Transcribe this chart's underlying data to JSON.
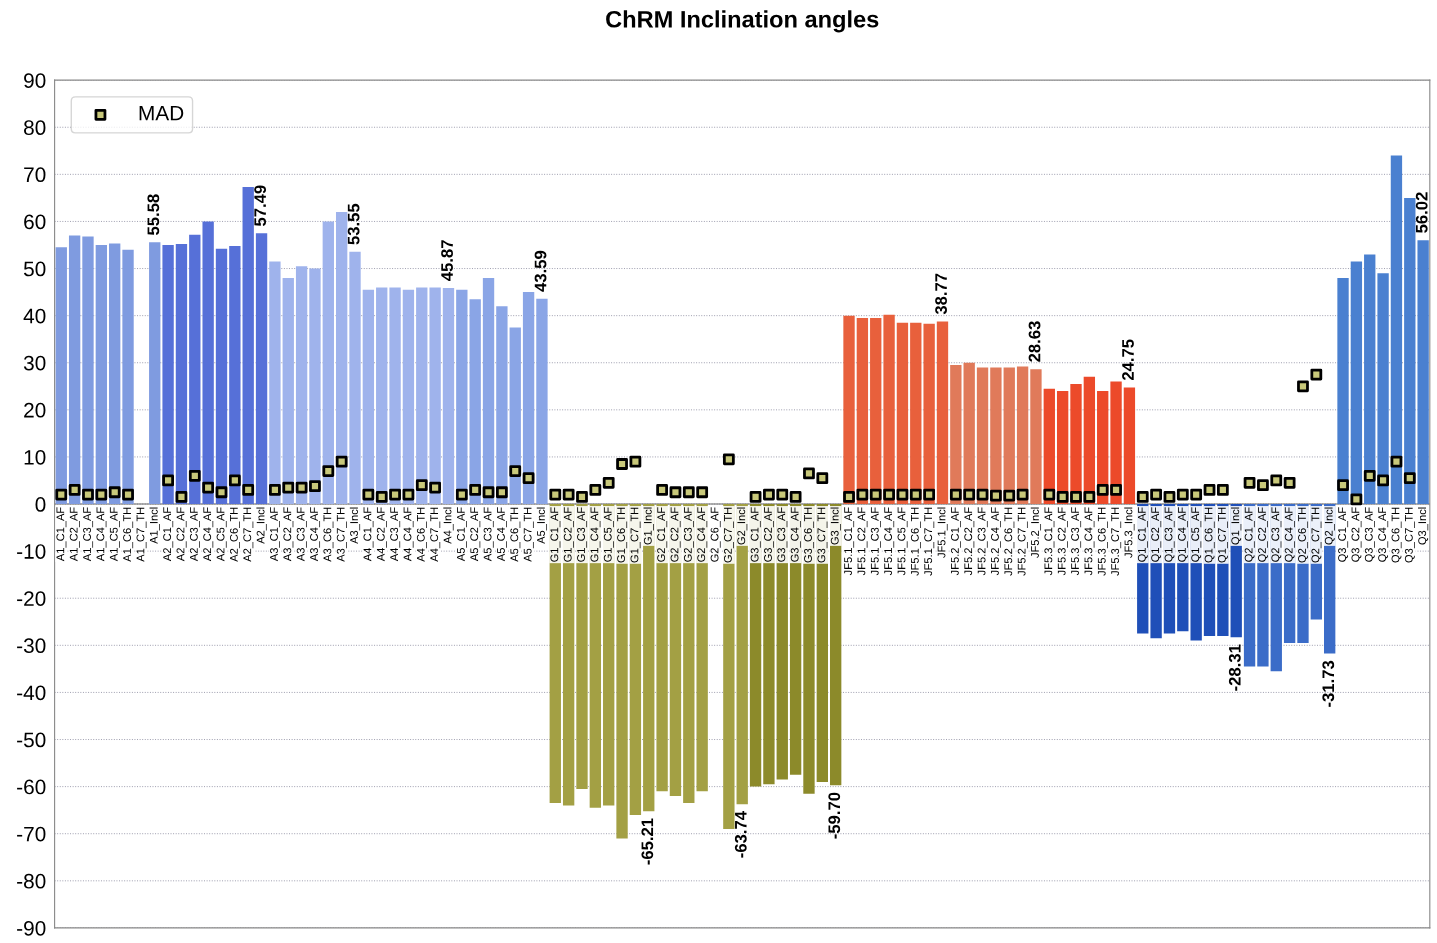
{
  "chart_data": {
    "type": "bar",
    "title": "ChRM Inclination angles",
    "categories": [
      "A1_C1_AF",
      "A1_C2_AF",
      "A1_C3_AF",
      "A1_C4_AF",
      "A1_C5_AF",
      "A1_C6_TH",
      "A1_C7_TH",
      "A1_Incl",
      "A2_C1_AF",
      "A2_C2_AF",
      "A2_C3_AF",
      "A2_C4_AF",
      "A2_C5_AF",
      "A2_C6_TH",
      "A2_C7_TH",
      "A2_Incl",
      "A3_C1_AF",
      "A3_C2_AF",
      "A3_C3_AF",
      "A3_C4_AF",
      "A3_C6_TH",
      "A3_C7_TH",
      "A3_Incl",
      "A4_C1_AF",
      "A4_C2_AF",
      "A4_C3_AF",
      "A4_C4_AF",
      "A4_C6_TH",
      "A4_C7_TH",
      "A4_Incl",
      "A5_C1_AF",
      "A5_C2_AF",
      "A5_C3_AF",
      "A5_C4_AF",
      "A5_C6_TH",
      "A5_C7_TH",
      "A5_Incl",
      "G1_C1_AF",
      "G1_C2_AF",
      "G1_C3_AF",
      "G1_C4_AF",
      "G1_C5_AF",
      "G1_C6_TH",
      "G1_C7_TH",
      "G1_Incl",
      "G2_C1_AF",
      "G2_C2_AF",
      "G2_C3_AF",
      "G2_C4_AF",
      "G2_C6_AF",
      "G2_C7_TH",
      "G2_Incl",
      "G3_C1_AF",
      "G3_C2_AF",
      "G3_C3_AF",
      "G3_C4_AF",
      "G3_C6_TH",
      "G3_C7_TH",
      "G3_Incl",
      "JF5.1_C1_AF",
      "JF5.1_C2_AF",
      "JF5.1_C3_AF",
      "JF5.1_C4_AF",
      "JF5.1_C5_AF",
      "JF5.1_C6_TH",
      "JF5.1_C7_TH",
      "JF5.1_Incl",
      "JF5.2_C1_AF",
      "JF5.2_C2_AF",
      "JF5.2_C3_AF",
      "JF5.2_C4_AF",
      "JF5.2_C6_TH",
      "JF5.2_C7_TH",
      "JF5.2_Incl",
      "JF5.3_C1_AF",
      "JF5.3_C2_AF",
      "JF5.3_C3_AF",
      "JF5.3_C4_AF",
      "JF5.3_C6_TH",
      "JF5.3_C7_TH",
      "JF5.3_Incl",
      "Q1_C1_AF",
      "Q1_C2_AF",
      "Q1_C3_AF",
      "Q1_C4_AF",
      "Q1_C5_AF",
      "Q1_C6_TH",
      "Q1_C7_TH",
      "Q1_Incl",
      "Q2_C1_AF",
      "Q2_C2_AF",
      "Q2_C3_AF",
      "Q2_C4_AF",
      "Q2_C6_TH",
      "Q2_C7_TH",
      "Q2_Incl",
      "Q3_C1_AF",
      "Q3_C2_AF",
      "Q3_C3_AF",
      "Q3_C4_AF",
      "Q3_C6_TH",
      "Q3_C7_TH",
      "Q3_Incl"
    ],
    "series": [
      {
        "values": [
          54.5,
          57,
          56.8,
          55,
          55.3,
          54,
          null,
          55.58,
          55,
          55.2,
          57.2,
          60,
          54.2,
          54.8,
          67.3,
          57.49,
          51.5,
          48,
          50.5,
          50,
          60,
          62,
          53.55,
          45.5,
          46,
          46,
          45.5,
          46,
          46,
          45.87,
          45.5,
          43.5,
          48,
          42,
          37.5,
          45,
          43.59,
          -63.5,
          -64,
          -60.5,
          -64.5,
          -64,
          -71,
          -66,
          -65.21,
          -61,
          -62,
          -63.5,
          -61,
          null,
          -69,
          -63.74,
          -60,
          -59.5,
          -58.5,
          -57.5,
          -61.5,
          -59,
          -59.7,
          40,
          39.5,
          39.5,
          40.2,
          38.5,
          38.5,
          38.3,
          38.77,
          29.5,
          30,
          29,
          29,
          29,
          29.2,
          28.63,
          24.5,
          24,
          25.5,
          27,
          24,
          26,
          24.75,
          -27.5,
          -28.5,
          -27.5,
          -27,
          -29,
          -28,
          -28,
          -28.31,
          -34.5,
          -34.5,
          -35.5,
          -29.5,
          -29.5,
          -24.5,
          -31.73,
          48,
          51.5,
          53,
          49,
          74,
          65,
          56.02
        ],
        "value_labels": [
          null,
          null,
          null,
          null,
          null,
          null,
          null,
          "55.58",
          null,
          null,
          null,
          null,
          null,
          null,
          null,
          "57.49",
          null,
          null,
          null,
          null,
          null,
          null,
          "53.55",
          null,
          null,
          null,
          null,
          null,
          null,
          "45.87",
          null,
          null,
          null,
          null,
          null,
          null,
          "43.59",
          null,
          null,
          null,
          null,
          null,
          null,
          null,
          "-65.21",
          null,
          null,
          null,
          null,
          null,
          null,
          "-63.74",
          null,
          null,
          null,
          null,
          null,
          null,
          "-59.70",
          null,
          null,
          null,
          null,
          null,
          null,
          null,
          "38.77",
          null,
          null,
          null,
          null,
          null,
          null,
          "28.63",
          null,
          null,
          null,
          null,
          null,
          null,
          "24.75",
          null,
          null,
          null,
          null,
          null,
          null,
          null,
          "-28.31",
          null,
          null,
          null,
          null,
          null,
          null,
          "-31.73",
          null,
          null,
          null,
          null,
          null,
          null,
          "56.02"
        ],
        "colors": [
          "#7f9be0",
          "#7f9be0",
          "#7f9be0",
          "#7f9be0",
          "#7f9be0",
          "#7f9be0",
          "#7f9be0",
          "#7f9be0",
          "#5670d8",
          "#5670d8",
          "#5670d8",
          "#5670d8",
          "#5670d8",
          "#5670d8",
          "#5670d8",
          "#5670d8",
          "#9fb3ec",
          "#9fb3ec",
          "#9fb3ec",
          "#9fb3ec",
          "#9fb3ec",
          "#9fb3ec",
          "#9fb3ec",
          "#9fb3ec",
          "#9fb3ec",
          "#9fb3ec",
          "#9fb3ec",
          "#9fb3ec",
          "#9fb3ec",
          "#9fb3ec",
          "#8aa5e6",
          "#8aa5e6",
          "#8aa5e6",
          "#8aa5e6",
          "#8aa5e6",
          "#8aa5e6",
          "#8aa5e6",
          "#a3a044",
          "#a3a044",
          "#a3a044",
          "#a3a044",
          "#a3a044",
          "#a3a044",
          "#a3a044",
          "#a3a044",
          "#a3a044",
          "#a3a044",
          "#a3a044",
          "#a3a044",
          "#a3a044",
          "#a3a044",
          "#a3a044",
          "#8c8a2a",
          "#8c8a2a",
          "#8c8a2a",
          "#8c8a2a",
          "#8c8a2a",
          "#8c8a2a",
          "#8c8a2a",
          "#e8603c",
          "#e8603c",
          "#e8603c",
          "#e8603c",
          "#e8603c",
          "#e8603c",
          "#e8603c",
          "#e8603c",
          "#e07a5a",
          "#e07a5a",
          "#e07a5a",
          "#e07a5a",
          "#e07a5a",
          "#e07a5a",
          "#e07a5a",
          "#ec4a2a",
          "#ec4a2a",
          "#ec4a2a",
          "#ec4a2a",
          "#ec4a2a",
          "#ec4a2a",
          "#ec4a2a",
          "#1f4fb8",
          "#1f4fb8",
          "#1f4fb8",
          "#1f4fb8",
          "#1f4fb8",
          "#1f4fb8",
          "#1f4fb8",
          "#1f4fb8",
          "#3b6cc8",
          "#3b6cc8",
          "#3b6cc8",
          "#3b6cc8",
          "#3b6cc8",
          "#3b6cc8",
          "#3b6cc8",
          "#4a80d0",
          "#4a80d0",
          "#4a80d0",
          "#4a80d0",
          "#4a80d0",
          "#4a80d0",
          "#4a80d0"
        ]
      },
      {
        "type": "scatter",
        "name": "MAD",
        "color": "#c8c87a",
        "values": [
          2,
          3,
          2,
          2,
          2.5,
          2,
          null,
          null,
          5,
          1.5,
          6,
          3.5,
          2.5,
          5,
          3,
          null,
          3,
          3.5,
          3.5,
          3.8,
          7,
          9,
          null,
          2,
          1.5,
          2,
          2,
          4,
          3.5,
          null,
          2,
          3,
          2.5,
          2.5,
          7,
          5.5,
          null,
          2,
          2,
          1.5,
          3,
          4.5,
          8.5,
          9,
          null,
          3,
          2.5,
          2.5,
          2.5,
          null,
          9.5,
          null,
          1.5,
          2,
          2,
          1.5,
          6.5,
          5.5,
          null,
          1.5,
          2,
          2,
          2,
          2,
          2,
          2,
          null,
          2,
          2,
          2,
          1.8,
          1.8,
          2,
          null,
          2,
          1.5,
          1.5,
          1.5,
          3,
          3,
          null,
          1.5,
          2,
          1.5,
          2,
          2,
          3,
          3,
          null,
          4.5,
          4,
          5,
          4.5,
          25,
          27.5,
          null,
          4,
          1,
          6,
          5,
          9,
          5.5,
          null
        ]
      }
    ],
    "ylim": [
      -90,
      90
    ],
    "yticks": [
      -90,
      -80,
      -70,
      -60,
      -50,
      -40,
      -30,
      -20,
      -10,
      0,
      10,
      20,
      30,
      40,
      50,
      60,
      70,
      80,
      90
    ],
    "grid": "y",
    "legend": "top left",
    "marker": "square"
  }
}
